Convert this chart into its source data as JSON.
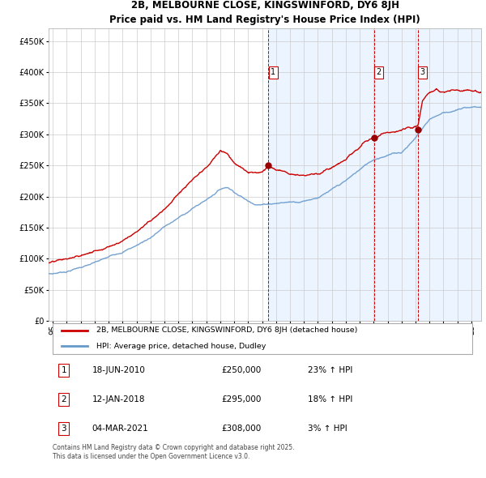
{
  "title": "2B, MELBOURNE CLOSE, KINGSWINFORD, DY6 8JH",
  "subtitle": "Price paid vs. HM Land Registry's House Price Index (HPI)",
  "legend_line1": "2B, MELBOURNE CLOSE, KINGSWINFORD, DY6 8JH (detached house)",
  "legend_line2": "HPI: Average price, detached house, Dudley",
  "transactions": [
    {
      "num": 1,
      "date": "18-JUN-2010",
      "price": 250000,
      "pct": "23%",
      "direction": "↑",
      "label_date": 2010.46
    },
    {
      "num": 2,
      "date": "12-JAN-2018",
      "price": 295000,
      "pct": "18%",
      "direction": "↑",
      "label_date": 2018.03
    },
    {
      "num": 3,
      "date": "04-MAR-2021",
      "price": 308000,
      "pct": "3%",
      "direction": "↑",
      "label_date": 2021.17
    }
  ],
  "footnote": "Contains HM Land Registry data © Crown copyright and database right 2025.\nThis data is licensed under the Open Government Licence v3.0.",
  "hpi_color": "#6699cc",
  "property_color": "#cc0000",
  "vline_color": "#cc0000",
  "bg_fill_color": "#ddeeff",
  "ylim": [
    0,
    470000
  ],
  "xlim_start": 1994.7,
  "xlim_end": 2025.7,
  "yticks": [
    0,
    50000,
    100000,
    150000,
    200000,
    250000,
    300000,
    350000,
    400000,
    450000
  ],
  "ytick_labels": [
    "£0",
    "£50K",
    "£100K",
    "£150K",
    "£200K",
    "£250K",
    "£300K",
    "£350K",
    "£400K",
    "£450K"
  ],
  "xticks": [
    1995,
    1996,
    1997,
    1998,
    1999,
    2000,
    2001,
    2002,
    2003,
    2004,
    2005,
    2006,
    2007,
    2008,
    2009,
    2010,
    2011,
    2012,
    2013,
    2014,
    2015,
    2016,
    2017,
    2018,
    2019,
    2020,
    2021,
    2022,
    2023,
    2024,
    2025
  ],
  "hpi_knots": [
    1995,
    1996,
    1997,
    1998,
    1999,
    2000,
    2001,
    2002,
    2003,
    2004,
    2005,
    2006,
    2007,
    2007.5,
    2008,
    2008.5,
    2009,
    2009.5,
    2010,
    2010.5,
    2011,
    2011.5,
    2012,
    2012.5,
    2013,
    2014,
    2015,
    2016,
    2017,
    2018,
    2019,
    2020,
    2021,
    2022,
    2023,
    2024,
    2025
  ],
  "hpi_vals": [
    76000,
    80000,
    87000,
    93000,
    100000,
    110000,
    120000,
    133000,
    150000,
    163000,
    178000,
    192000,
    210000,
    214000,
    207000,
    200000,
    192000,
    189000,
    188000,
    190000,
    191000,
    192000,
    193000,
    194000,
    196000,
    203000,
    213000,
    225000,
    242000,
    258000,
    267000,
    271000,
    295000,
    325000,
    336000,
    340000,
    344000
  ],
  "prop_knots": [
    1995,
    1996,
    1997,
    1998,
    1999,
    2000,
    2001,
    2002,
    2003,
    2004,
    2005,
    2006,
    2007,
    2007.5,
    2008,
    2009,
    2009.5,
    2010.0,
    2010.46,
    2011,
    2012,
    2013,
    2014,
    2015,
    2016,
    2017,
    2017.5,
    2018.03,
    2019,
    2020,
    2020.5,
    2021.17,
    2021.5,
    2022,
    2022.5,
    2023,
    2024,
    2025
  ],
  "prop_vals": [
    93000,
    96000,
    100000,
    108000,
    118000,
    130000,
    145000,
    163000,
    185000,
    210000,
    230000,
    245000,
    272000,
    268000,
    255000,
    237000,
    235000,
    238000,
    250000,
    243000,
    238000,
    240000,
    244000,
    252000,
    264000,
    282000,
    290000,
    295000,
    302000,
    306000,
    307000,
    308000,
    348000,
    358000,
    365000,
    362000,
    366000,
    368000
  ]
}
